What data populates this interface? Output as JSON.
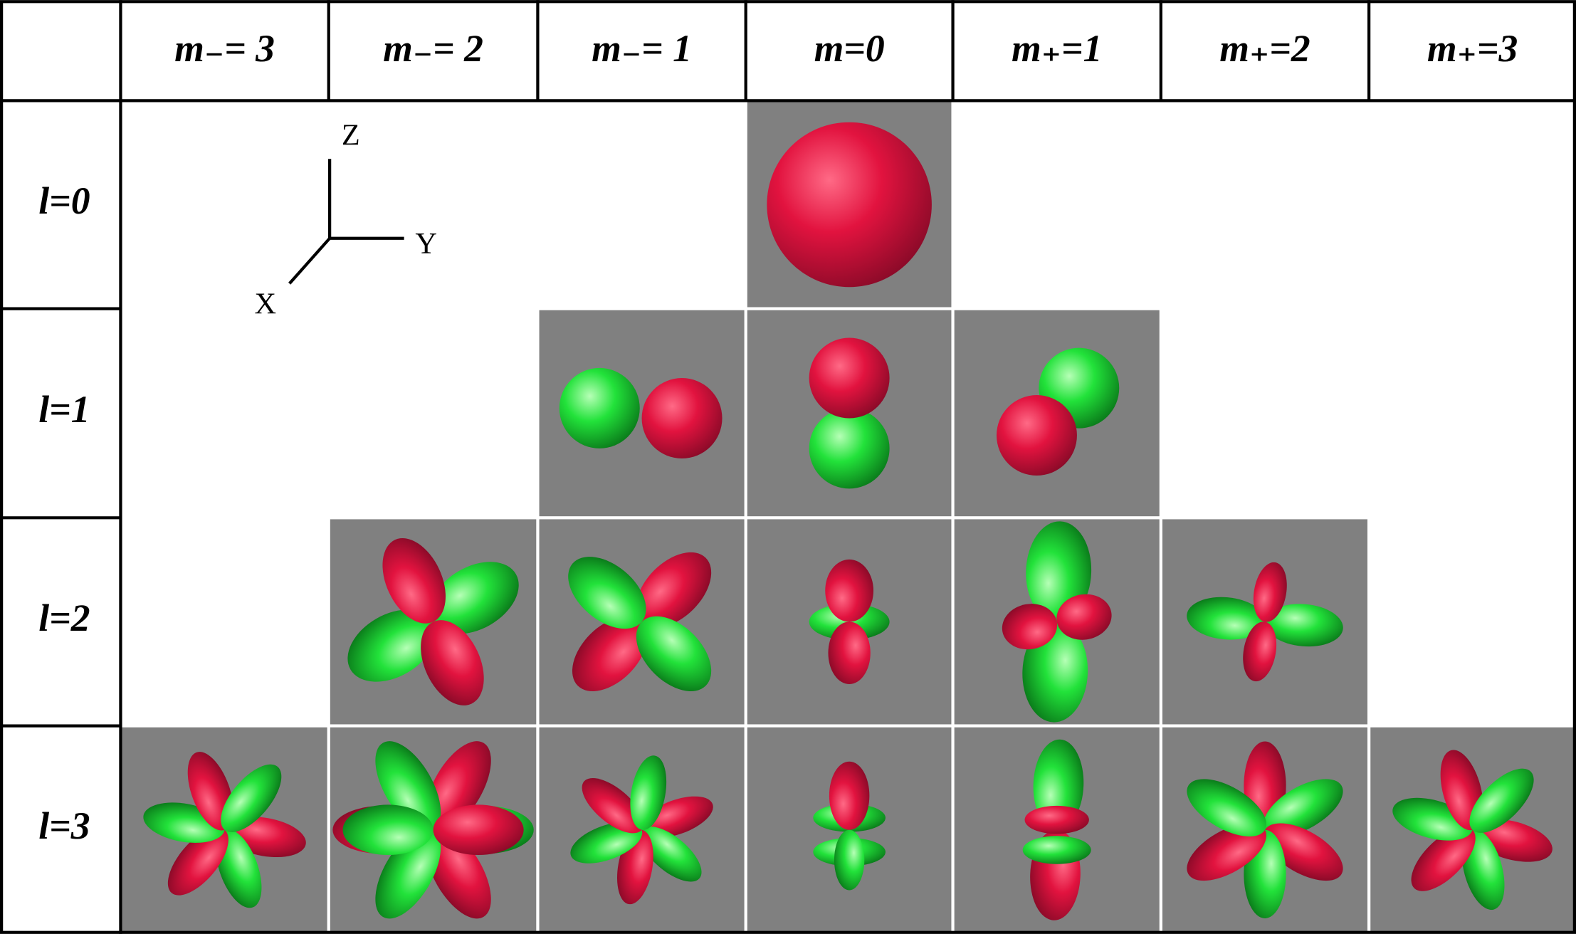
{
  "columns": [
    "m₋= 3",
    "m₋= 2",
    "m₋= 1",
    "m=0",
    "m₊=1",
    "m₊=2",
    "m₊=3"
  ],
  "rows": [
    "l=0",
    "l=1",
    "l=2",
    "l=3"
  ],
  "axes": {
    "z": "Z",
    "y": "Y",
    "x": "X"
  }
}
